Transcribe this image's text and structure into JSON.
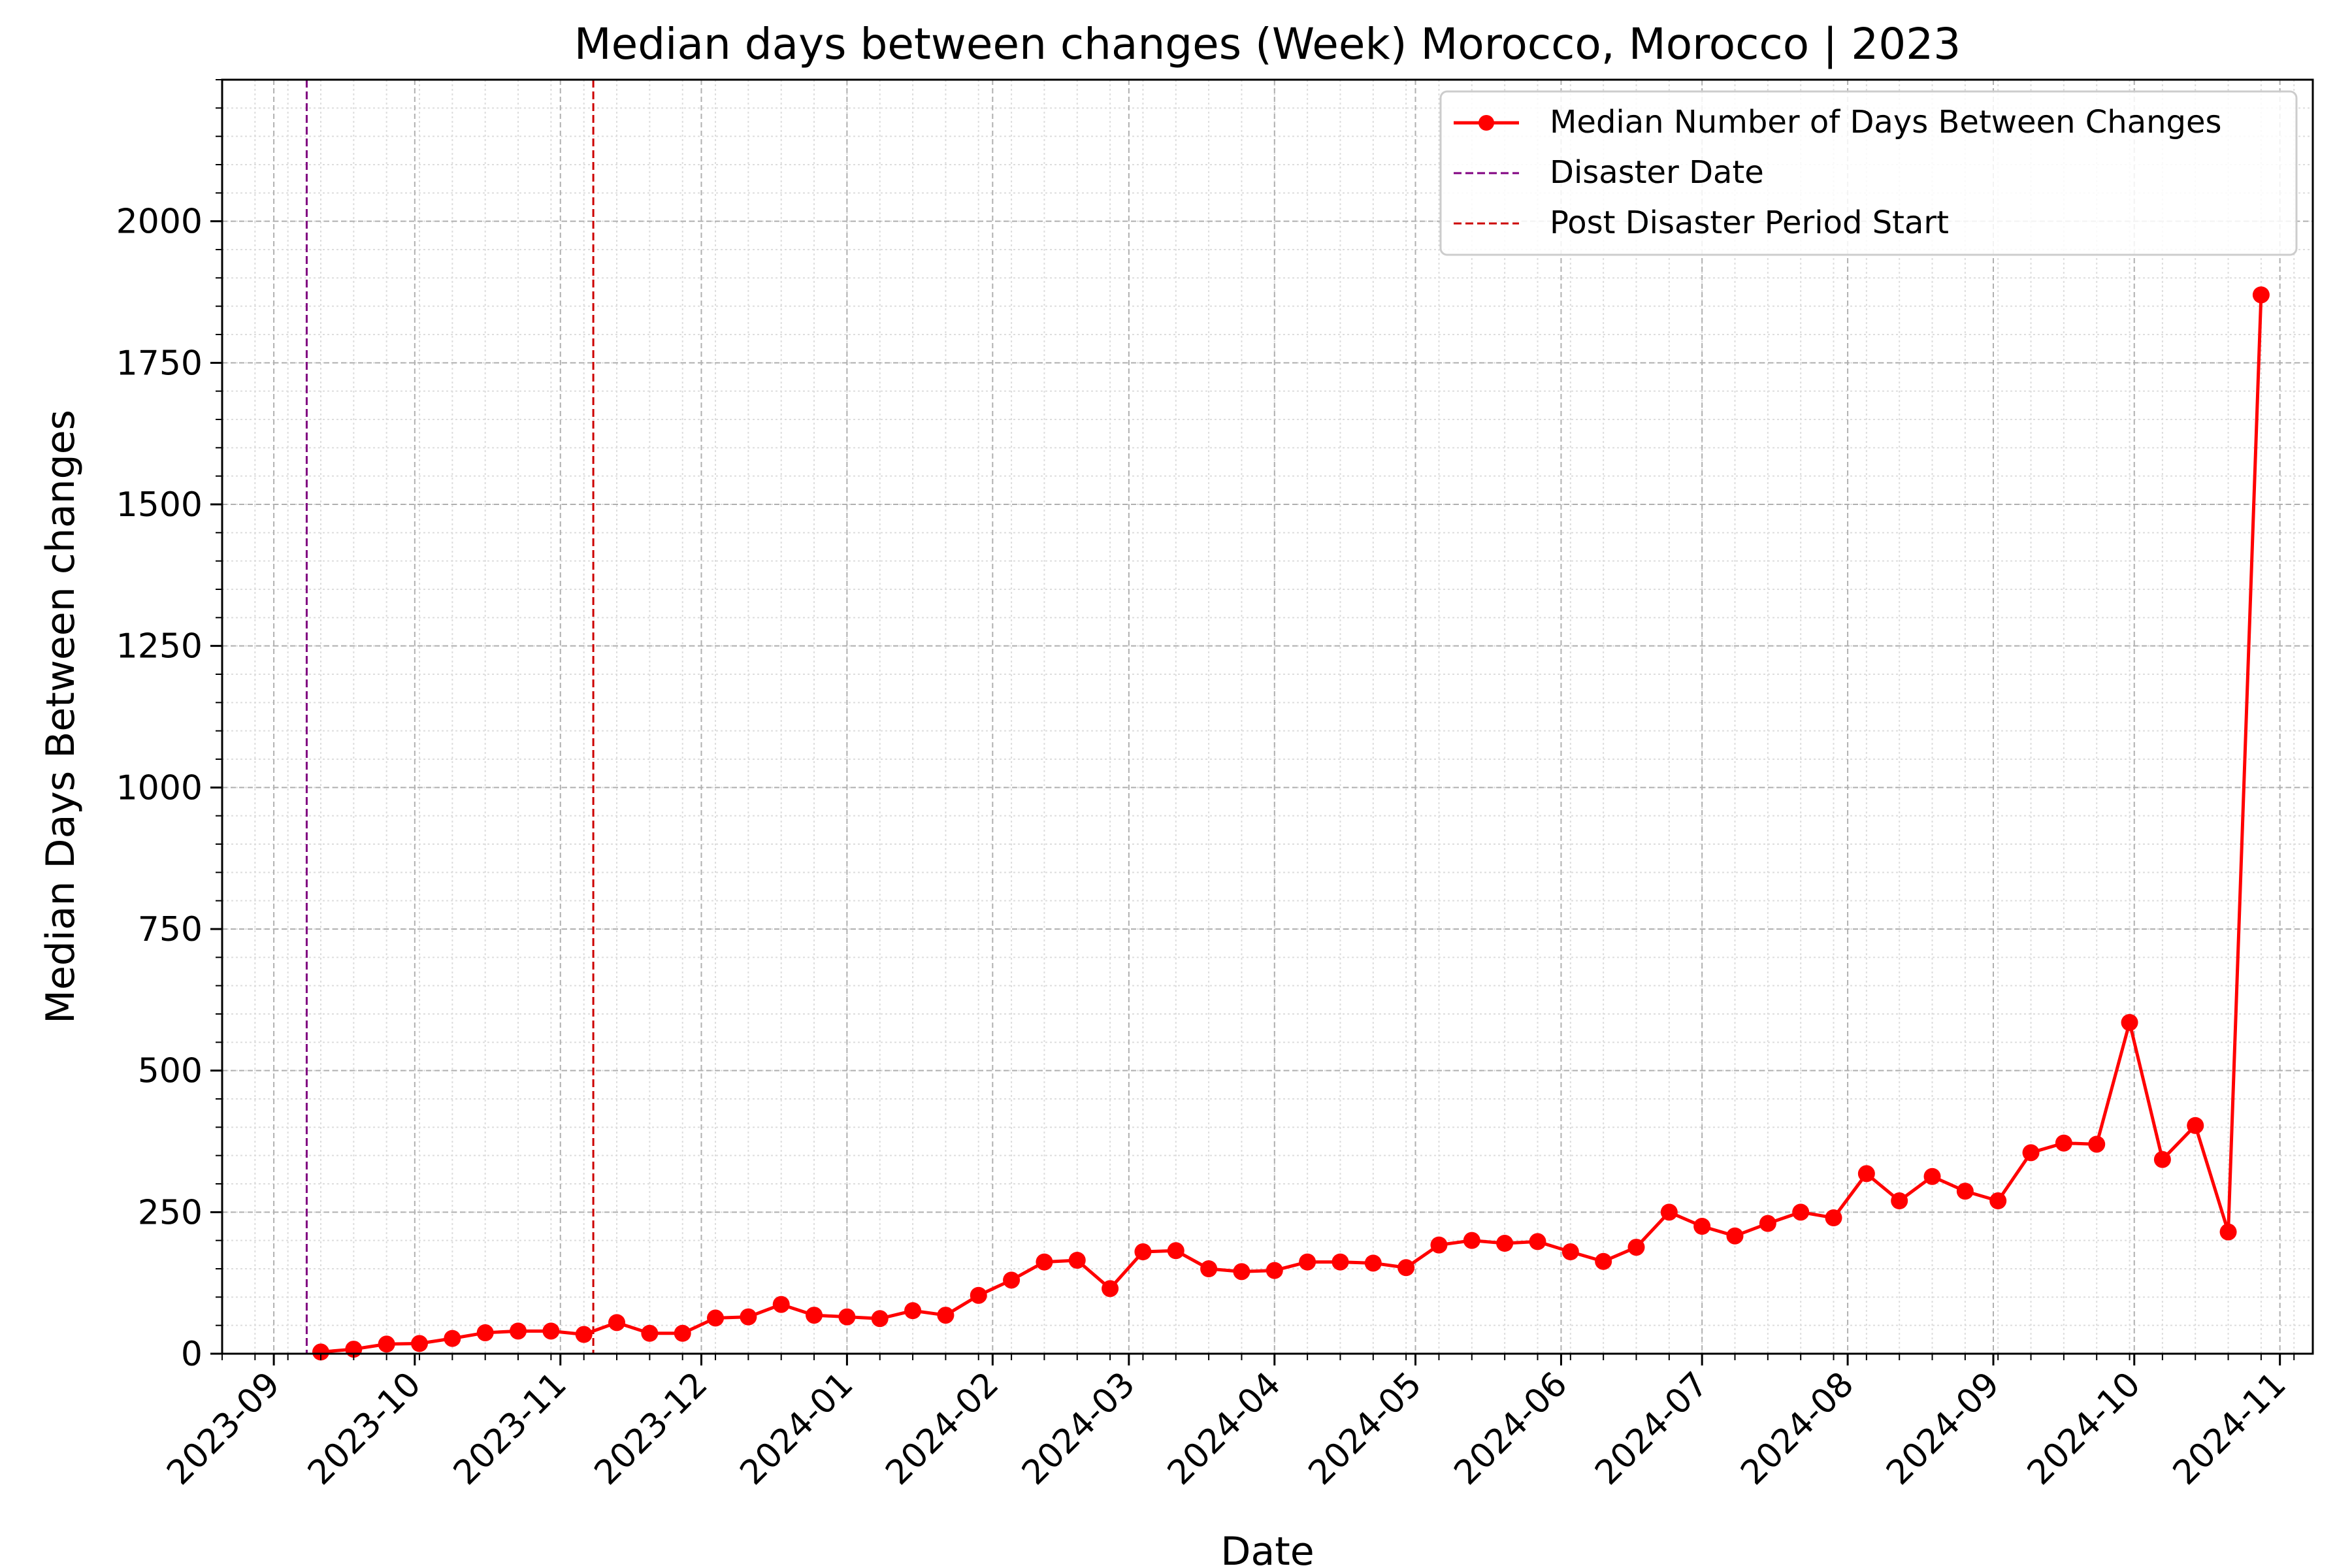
{
  "chart_data": {
    "type": "line",
    "title": "Median days between changes (Week) Morocco, Morocco | 2023",
    "xlabel": "Date",
    "ylabel": "Median Days Between changes",
    "xlim": [
      "2023-08-21",
      "2024-11-08"
    ],
    "ylim": [
      0,
      2250
    ],
    "y_ticks": [
      0,
      250,
      500,
      750,
      1000,
      1250,
      1500,
      1750,
      2000
    ],
    "x_ticks": [
      "2023-09",
      "2023-10",
      "2023-11",
      "2023-12",
      "2024-01",
      "2024-02",
      "2024-03",
      "2024-04",
      "2024-05",
      "2024-06",
      "2024-07",
      "2024-08",
      "2024-09",
      "2024-10",
      "2024-11"
    ],
    "grid": true,
    "legend_position": "upper-right",
    "series": [
      {
        "name": "Median Number of Days Between Changes",
        "color": "#ff0000",
        "marker": "circle",
        "x": [
          "2023-09-11",
          "2023-09-18",
          "2023-09-25",
          "2023-10-02",
          "2023-10-09",
          "2023-10-16",
          "2023-10-23",
          "2023-10-30",
          "2023-11-06",
          "2023-11-13",
          "2023-11-20",
          "2023-11-27",
          "2023-12-04",
          "2023-12-11",
          "2023-12-18",
          "2023-12-25",
          "2024-01-01",
          "2024-01-08",
          "2024-01-15",
          "2024-01-22",
          "2024-01-29",
          "2024-02-05",
          "2024-02-12",
          "2024-02-19",
          "2024-02-26",
          "2024-03-04",
          "2024-03-11",
          "2024-03-18",
          "2024-03-25",
          "2024-04-01",
          "2024-04-08",
          "2024-04-15",
          "2024-04-22",
          "2024-04-29",
          "2024-05-06",
          "2024-05-13",
          "2024-05-20",
          "2024-05-27",
          "2024-06-03",
          "2024-06-10",
          "2024-06-17",
          "2024-06-24",
          "2024-07-01",
          "2024-07-08",
          "2024-07-15",
          "2024-07-22",
          "2024-07-29",
          "2024-08-05",
          "2024-08-12",
          "2024-08-19",
          "2024-08-26",
          "2024-09-02",
          "2024-09-09",
          "2024-09-16",
          "2024-09-23",
          "2024-09-30",
          "2024-10-07",
          "2024-10-14",
          "2024-10-21",
          "2024-10-28"
        ],
        "y": [
          3,
          8,
          17,
          18,
          27,
          37,
          40,
          40,
          34,
          55,
          36,
          36,
          63,
          65,
          87,
          68,
          65,
          62,
          76,
          68,
          103,
          130,
          162,
          165,
          115,
          180,
          182,
          150,
          145,
          147,
          162,
          162,
          160,
          152,
          192,
          200,
          195,
          198,
          180,
          163,
          188,
          250,
          225,
          208,
          230,
          250,
          240,
          318,
          270,
          313,
          287,
          270,
          355,
          372,
          370,
          585,
          343,
          403,
          215,
          1870
        ]
      }
    ],
    "vertical_lines": [
      {
        "name": "Disaster Date",
        "x": "2023-09-08",
        "color": "#800080",
        "style": "dashed"
      },
      {
        "name": "Post Disaster Period Start",
        "x": "2023-11-08",
        "color": "#cc0000",
        "style": "dashed"
      }
    ]
  }
}
